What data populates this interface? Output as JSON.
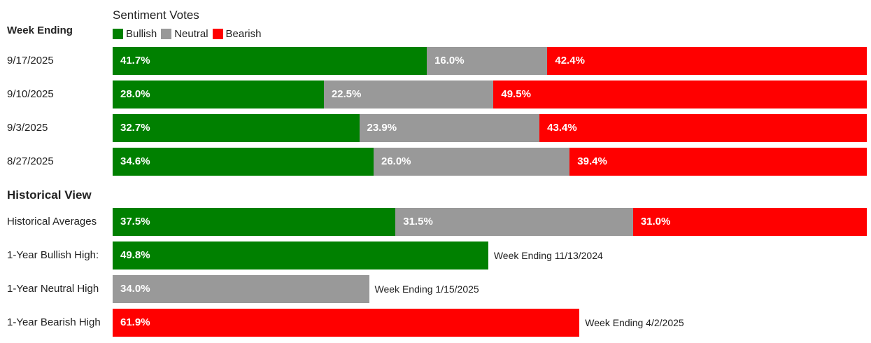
{
  "legend": {
    "title": "Sentiment Votes",
    "items": [
      {
        "name": "Bullish",
        "color": "#008000"
      },
      {
        "name": "Neutral",
        "color": "#999999"
      },
      {
        "name": "Bearish",
        "color": "#ff0000"
      }
    ]
  },
  "sections": {
    "week_ending": "Week Ending",
    "historical": "Historical View"
  },
  "chart_data": {
    "type": "bar",
    "orientation": "horizontal",
    "stacked": true,
    "title": "Sentiment Votes",
    "series_names": [
      "Bullish",
      "Neutral",
      "Bearish"
    ],
    "colors": {
      "Bullish": "#008000",
      "Neutral": "#999999",
      "Bearish": "#ff0000"
    },
    "weekly": [
      {
        "label": "9/17/2025",
        "bullish": 41.7,
        "neutral": 16.0,
        "bearish": 42.4,
        "bullish_text": "41.7%",
        "neutral_text": "16.0%",
        "bearish_text": "42.4%"
      },
      {
        "label": "9/10/2025",
        "bullish": 28.0,
        "neutral": 22.5,
        "bearish": 49.5,
        "bullish_text": "28.0%",
        "neutral_text": "22.5%",
        "bearish_text": "49.5%"
      },
      {
        "label": "9/3/2025",
        "bullish": 32.7,
        "neutral": 23.9,
        "bearish": 43.4,
        "bullish_text": "32.7%",
        "neutral_text": "23.9%",
        "bearish_text": "43.4%"
      },
      {
        "label": "8/27/2025",
        "bullish": 34.6,
        "neutral": 26.0,
        "bearish": 39.4,
        "bullish_text": "34.6%",
        "neutral_text": "26.0%",
        "bearish_text": "39.4%"
      }
    ],
    "historical_averages": {
      "label": "Historical Averages",
      "bullish": 37.5,
      "neutral": 31.5,
      "bearish": 31.0,
      "bullish_text": "37.5%",
      "neutral_text": "31.5%",
      "bearish_text": "31.0%"
    },
    "highs": [
      {
        "label": "1-Year Bullish High:",
        "series": "Bullish",
        "value": 49.8,
        "value_text": "49.8%",
        "note": "Week Ending 11/13/2024"
      },
      {
        "label": "1-Year Neutral High",
        "series": "Neutral",
        "value": 34.0,
        "value_text": "34.0%",
        "note": "Week Ending 1/15/2025"
      },
      {
        "label": "1-Year Bearish High",
        "series": "Bearish",
        "value": 61.9,
        "value_text": "61.9%",
        "note": "Week Ending 4/2/2025"
      }
    ]
  }
}
